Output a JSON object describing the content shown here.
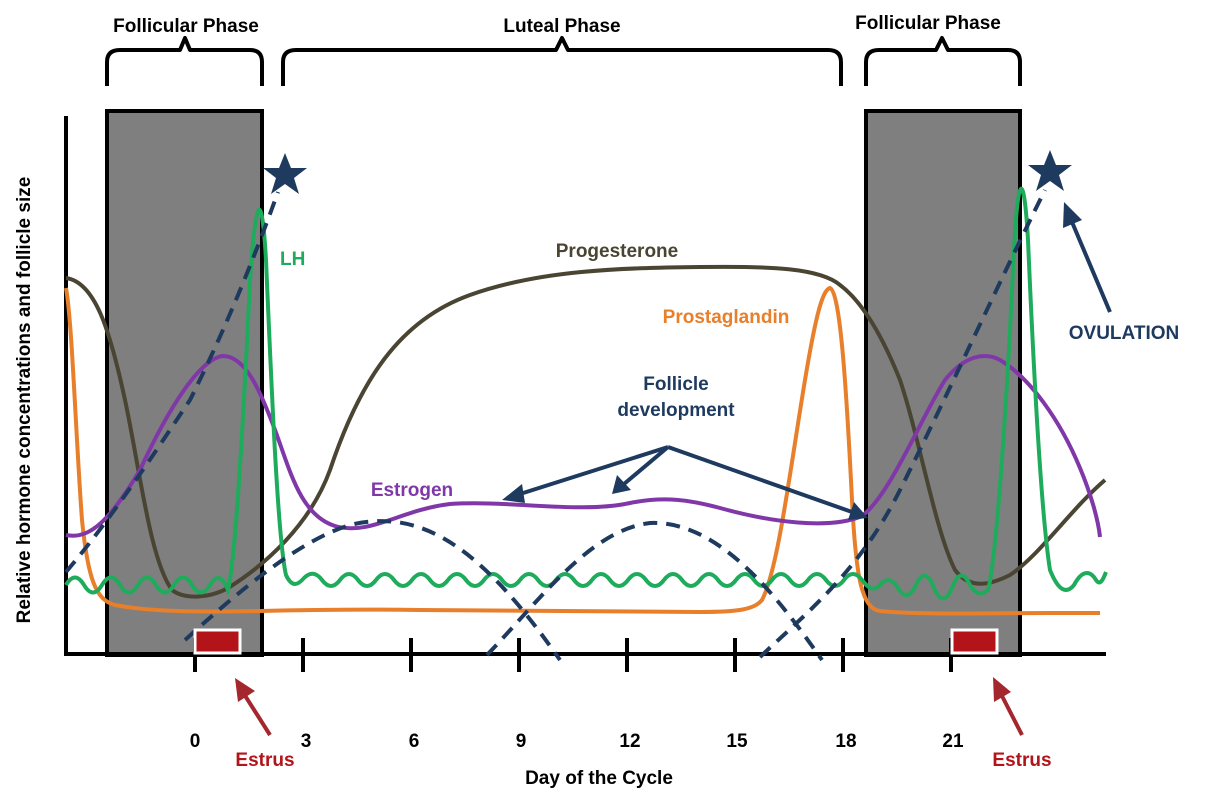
{
  "phases": {
    "follicular_left": "Follicular Phase",
    "luteal": "Luteal Phase",
    "follicular_right": "Follicular Phase"
  },
  "axes": {
    "ylabel": "Relative hormone concentrations and follicle size",
    "xlabel": "Day of the Cycle",
    "ticks": [
      "0",
      "3",
      "6",
      "9",
      "12",
      "15",
      "18",
      "21"
    ]
  },
  "labels": {
    "lh": "LH",
    "progesterone": "Progesterone",
    "prostaglandin": "Prostaglandin",
    "ovulation": "OVULATION",
    "follicle_line1": "Follicle",
    "follicle_line2": "development",
    "estrogen": "Estrogen",
    "estrus_left": "Estrus",
    "estrus_right": "Estrus"
  },
  "colors": {
    "lh": "#1fab5c",
    "progesterone": "#4a4533",
    "prostaglandin": "#e77f2b",
    "estrogen": "#8038a8",
    "follicle": "#1e3a5f",
    "estrus": "#b3141a",
    "estrus_arrow": "#a3272d",
    "shade": "#7f7f7f"
  }
}
